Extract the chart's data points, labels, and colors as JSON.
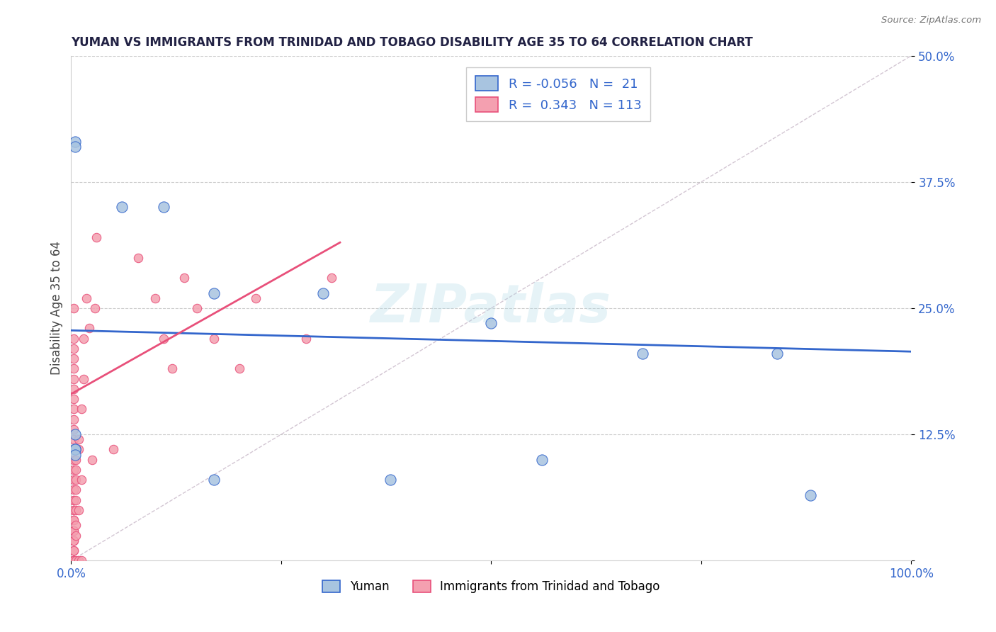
{
  "title": "YUMAN VS IMMIGRANTS FROM TRINIDAD AND TOBAGO DISABILITY AGE 35 TO 64 CORRELATION CHART",
  "source_text": "Source: ZipAtlas.com",
  "ylabel": "Disability Age 35 to 64",
  "xlim": [
    0.0,
    1.0
  ],
  "ylim": [
    0.0,
    0.5
  ],
  "yticks": [
    0.0,
    0.125,
    0.25,
    0.375,
    0.5
  ],
  "ytick_labels": [
    "",
    "12.5%",
    "25.0%",
    "37.5%",
    "50.0%"
  ],
  "xticks": [
    0.0,
    0.25,
    0.5,
    0.75,
    1.0
  ],
  "xtick_labels": [
    "0.0%",
    "",
    "",
    "",
    "100.0%"
  ],
  "yuman_scatter_x": [
    0.005,
    0.005,
    0.06,
    0.11,
    0.17,
    0.3,
    0.5,
    0.68,
    0.84,
    0.005,
    0.005,
    0.005,
    0.005,
    0.17,
    0.38,
    0.56,
    0.88
  ],
  "yuman_scatter_y": [
    0.415,
    0.41,
    0.35,
    0.35,
    0.265,
    0.265,
    0.235,
    0.205,
    0.205,
    0.125,
    0.11,
    0.11,
    0.105,
    0.08,
    0.08,
    0.1,
    0.065
  ],
  "tt_scatter_x": [
    0.003,
    0.003,
    0.003,
    0.003,
    0.003,
    0.003,
    0.003,
    0.003,
    0.003,
    0.003,
    0.003,
    0.003,
    0.003,
    0.003,
    0.003,
    0.003,
    0.003,
    0.003,
    0.003,
    0.003,
    0.003,
    0.003,
    0.003,
    0.003,
    0.003,
    0.003,
    0.003,
    0.003,
    0.003,
    0.003,
    0.003,
    0.003,
    0.003,
    0.003,
    0.003,
    0.003,
    0.006,
    0.006,
    0.006,
    0.006,
    0.006,
    0.006,
    0.006,
    0.006,
    0.006,
    0.009,
    0.009,
    0.009,
    0.009,
    0.012,
    0.012,
    0.012,
    0.015,
    0.015,
    0.018,
    0.022,
    0.025,
    0.028,
    0.03,
    0.05,
    0.08,
    0.1,
    0.11,
    0.12,
    0.135,
    0.15,
    0.17,
    0.2,
    0.22,
    0.28,
    0.31
  ],
  "tt_scatter_y": [
    0.0,
    0.01,
    0.02,
    0.03,
    0.04,
    0.05,
    0.06,
    0.07,
    0.08,
    0.09,
    0.1,
    0.11,
    0.12,
    0.13,
    0.14,
    0.15,
    0.16,
    0.17,
    0.18,
    0.19,
    0.2,
    0.21,
    0.22,
    0.25,
    0.04,
    0.05,
    0.06,
    0.02,
    0.03,
    0.01,
    0.0,
    0.0,
    0.0,
    0.0,
    0.0,
    0.0,
    0.08,
    0.09,
    0.1,
    0.05,
    0.06,
    0.07,
    0.025,
    0.035,
    0.0,
    0.11,
    0.12,
    0.05,
    0.0,
    0.15,
    0.08,
    0.0,
    0.22,
    0.18,
    0.26,
    0.23,
    0.1,
    0.25,
    0.32,
    0.11,
    0.3,
    0.26,
    0.22,
    0.19,
    0.28,
    0.25,
    0.22,
    0.19,
    0.26,
    0.22,
    0.28
  ],
  "yuman_color": "#a8c4e0",
  "tt_color": "#f4a0b0",
  "yuman_line_color": "#3366cc",
  "tt_line_color": "#e8507a",
  "diagonal_color": "#c8b8c8",
  "R_yuman": -0.056,
  "N_yuman": 21,
  "R_tt": 0.343,
  "N_tt": 113,
  "watermark": "ZIPatlas",
  "background_color": "#ffffff",
  "grid_color": "#cccccc",
  "yuman_line_start_y": 0.228,
  "yuman_line_end_y": 0.207,
  "tt_line_start_x": 0.0,
  "tt_line_end_x": 0.32,
  "tt_line_start_y": 0.165,
  "tt_line_end_y": 0.315
}
